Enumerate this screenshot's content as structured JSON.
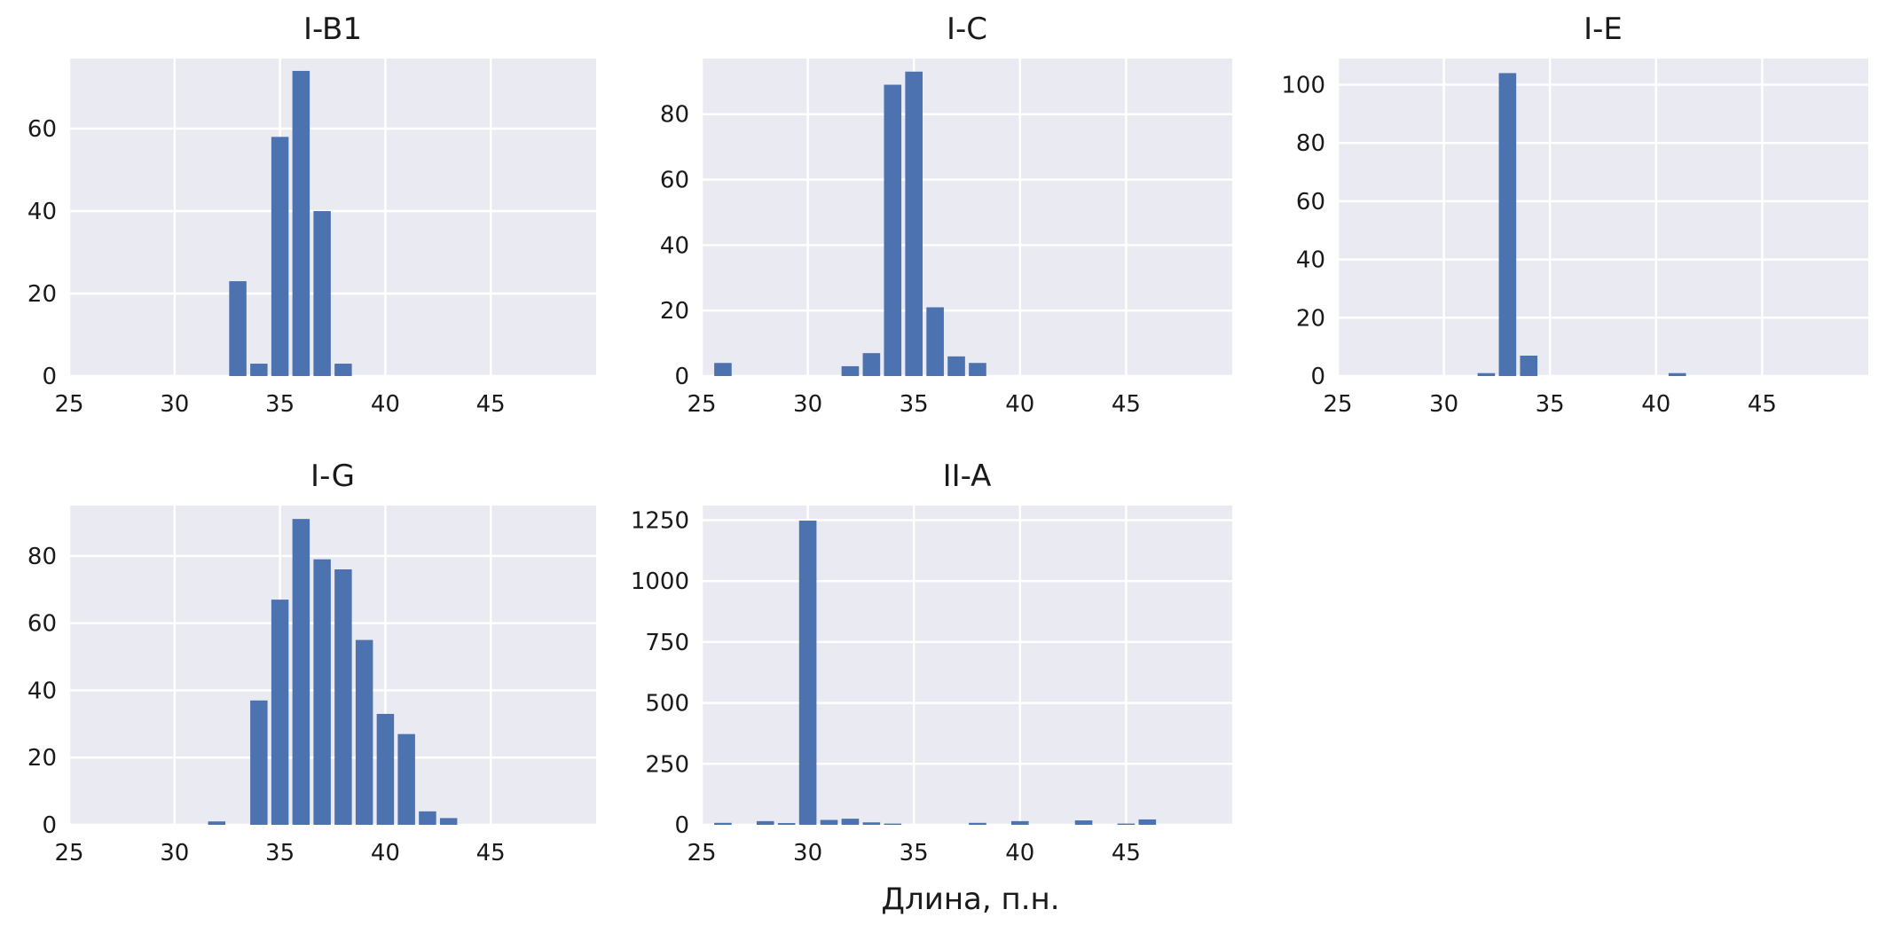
{
  "figure": {
    "xlabel": "Длина, п.н."
  },
  "colors": {
    "bar": "#4C72B0",
    "panel_bg": "#EAEAF2",
    "grid": "#FFFFFF"
  },
  "chart_data": [
    {
      "type": "bar",
      "title": "I-B1",
      "xlabel": "",
      "ylabel": "",
      "xlim": [
        25,
        50
      ],
      "ylim": [
        0,
        77
      ],
      "xticks": [
        25,
        30,
        35,
        40,
        45
      ],
      "yticks": [
        0,
        20,
        40,
        60
      ],
      "grid": true,
      "x": [
        33,
        34,
        35,
        36,
        37,
        38
      ],
      "values": [
        23,
        3,
        58,
        74,
        40,
        3
      ]
    },
    {
      "type": "bar",
      "title": "I-C",
      "xlabel": "",
      "ylabel": "",
      "xlim": [
        25,
        50
      ],
      "ylim": [
        0,
        97
      ],
      "xticks": [
        25,
        30,
        35,
        40,
        45
      ],
      "yticks": [
        0,
        20,
        40,
        60,
        80
      ],
      "grid": true,
      "x": [
        26,
        32,
        33,
        34,
        35,
        36,
        37,
        38
      ],
      "values": [
        4,
        3,
        7,
        89,
        93,
        21,
        6,
        4
      ]
    },
    {
      "type": "bar",
      "title": "I-E",
      "xlabel": "",
      "ylabel": "",
      "xlim": [
        25,
        50
      ],
      "ylim": [
        0,
        109
      ],
      "xticks": [
        25,
        30,
        35,
        40,
        45
      ],
      "yticks": [
        0,
        20,
        40,
        60,
        80,
        100
      ],
      "grid": true,
      "x": [
        32,
        33,
        34,
        41
      ],
      "values": [
        1,
        104,
        7,
        1
      ]
    },
    {
      "type": "bar",
      "title": "I-G",
      "xlabel": "",
      "ylabel": "",
      "xlim": [
        25,
        50
      ],
      "ylim": [
        0,
        95
      ],
      "xticks": [
        25,
        30,
        35,
        40,
        45
      ],
      "yticks": [
        0,
        20,
        40,
        60,
        80
      ],
      "grid": true,
      "x": [
        32,
        34,
        35,
        36,
        37,
        38,
        39,
        40,
        41,
        42,
        43
      ],
      "values": [
        1,
        37,
        67,
        91,
        79,
        76,
        55,
        33,
        27,
        4,
        2
      ]
    },
    {
      "type": "bar",
      "title": "II-A",
      "xlabel": "",
      "ylabel": "",
      "xlim": [
        25,
        50
      ],
      "ylim": [
        0,
        1310
      ],
      "xticks": [
        25,
        30,
        35,
        40,
        45
      ],
      "yticks": [
        0,
        250,
        500,
        750,
        1000,
        1250
      ],
      "grid": true,
      "x": [
        26,
        28,
        29,
        30,
        31,
        32,
        33,
        34,
        38,
        40,
        43,
        45,
        46
      ],
      "values": [
        8,
        15,
        7,
        1248,
        20,
        25,
        10,
        5,
        8,
        15,
        18,
        5,
        22
      ]
    }
  ]
}
